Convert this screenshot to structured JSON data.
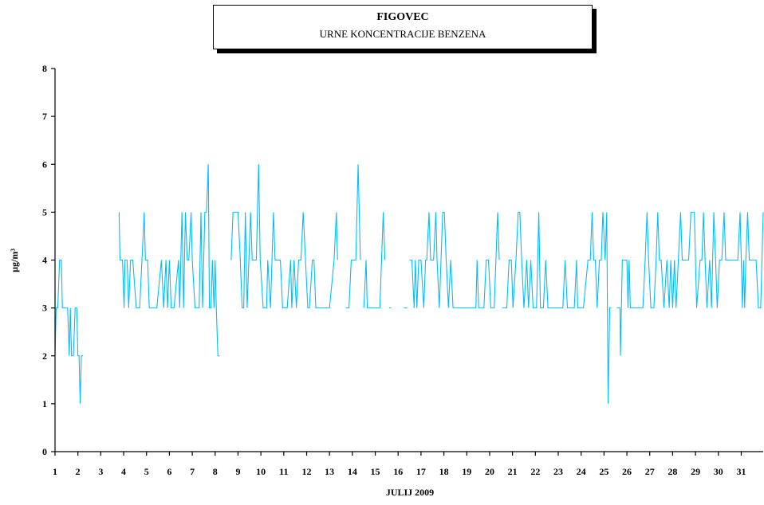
{
  "chart_data": {
    "type": "line",
    "title": "FIGOVEC",
    "subtitle": "URNE KONCENTRACIJE BENZENA",
    "xlabel": "JULIJ 2009",
    "ylabel": "µg/m³",
    "ylim": [
      0,
      8
    ],
    "xlim": [
      1,
      31.96
    ],
    "yticks": [
      "0",
      "1",
      "2",
      "3",
      "4",
      "5",
      "6",
      "7",
      "8"
    ],
    "xticks": [
      "1",
      "2",
      "3",
      "4",
      "5",
      "6",
      "7",
      "8",
      "9",
      "10",
      "11",
      "12",
      "13",
      "14",
      "15",
      "16",
      "17",
      "18",
      "19",
      "20",
      "21",
      "22",
      "23",
      "24",
      "25",
      "26",
      "27",
      "28",
      "29",
      "30",
      "31"
    ],
    "grid": false,
    "line_color": "#00BFFF",
    "series": [
      {
        "values": [
          [
            1.0,
            2
          ],
          [
            1.05,
            3
          ],
          [
            1.12,
            3
          ],
          [
            1.2,
            4
          ],
          [
            1.28,
            4
          ],
          [
            1.32,
            3
          ],
          [
            1.45,
            3
          ],
          [
            1.55,
            3
          ],
          [
            1.62,
            2
          ],
          [
            1.67,
            3
          ],
          [
            1.72,
            2
          ],
          [
            1.8,
            2
          ],
          [
            1.88,
            3
          ],
          [
            1.95,
            3
          ],
          [
            2.0,
            2
          ],
          [
            2.05,
            2
          ],
          [
            2.1,
            1
          ],
          [
            2.15,
            2
          ],
          [
            2.22,
            2
          ],
          null,
          [
            3.8,
            5
          ],
          [
            3.84,
            4
          ],
          [
            3.95,
            4
          ],
          [
            4.02,
            3
          ],
          [
            4.06,
            4
          ],
          [
            4.15,
            4
          ],
          [
            4.22,
            3
          ],
          [
            4.3,
            4
          ],
          [
            4.4,
            4
          ],
          [
            4.55,
            3
          ],
          [
            4.7,
            3
          ],
          [
            4.8,
            4
          ],
          [
            4.9,
            5
          ],
          [
            4.95,
            4
          ],
          [
            5.05,
            4
          ],
          [
            5.12,
            3
          ],
          [
            5.3,
            3
          ],
          [
            5.45,
            3
          ],
          [
            5.65,
            4
          ],
          [
            5.75,
            3
          ],
          [
            5.85,
            4
          ],
          [
            5.92,
            3
          ],
          [
            6.0,
            4
          ],
          [
            6.08,
            3
          ],
          [
            6.2,
            3
          ],
          [
            6.4,
            4
          ],
          [
            6.45,
            3
          ],
          [
            6.55,
            5
          ],
          [
            6.62,
            3
          ],
          [
            6.7,
            5
          ],
          [
            6.78,
            4
          ],
          [
            6.85,
            4
          ],
          [
            6.95,
            5
          ],
          [
            7.0,
            4
          ],
          [
            7.12,
            3
          ],
          [
            7.3,
            3
          ],
          [
            7.38,
            5
          ],
          [
            7.45,
            3
          ],
          [
            7.55,
            5
          ],
          [
            7.62,
            5
          ],
          [
            7.7,
            6
          ],
          [
            7.75,
            3
          ],
          [
            7.82,
            3
          ],
          [
            7.88,
            4
          ],
          [
            7.95,
            3
          ],
          [
            8.0,
            4
          ],
          [
            8.05,
            3
          ],
          [
            8.12,
            2
          ],
          [
            8.2,
            2
          ],
          null,
          [
            8.7,
            4
          ],
          [
            8.78,
            5
          ],
          [
            8.88,
            5
          ],
          [
            9.0,
            5
          ],
          [
            9.1,
            4
          ],
          [
            9.18,
            3
          ],
          [
            9.25,
            3
          ],
          [
            9.32,
            5
          ],
          [
            9.4,
            3
          ],
          [
            9.55,
            5
          ],
          [
            9.62,
            4
          ],
          [
            9.7,
            4
          ],
          [
            9.8,
            4
          ],
          [
            9.85,
            5
          ],
          [
            9.9,
            6
          ],
          [
            9.97,
            4
          ],
          [
            10.1,
            3
          ],
          [
            10.25,
            3
          ],
          [
            10.3,
            4
          ],
          [
            10.42,
            3
          ],
          [
            10.55,
            5
          ],
          [
            10.62,
            4
          ],
          [
            10.72,
            4
          ],
          [
            10.85,
            4
          ],
          [
            10.95,
            3
          ],
          [
            11.15,
            3
          ],
          [
            11.3,
            4
          ],
          [
            11.35,
            3
          ],
          [
            11.45,
            4
          ],
          [
            11.55,
            3
          ],
          [
            11.65,
            4
          ],
          [
            11.75,
            4
          ],
          [
            11.85,
            5
          ],
          [
            11.95,
            4
          ],
          [
            12.05,
            3
          ],
          [
            12.12,
            3
          ],
          [
            12.25,
            4
          ],
          [
            12.32,
            4
          ],
          [
            12.4,
            3
          ],
          [
            12.55,
            3
          ],
          [
            12.7,
            3
          ],
          [
            13.0,
            3
          ],
          [
            13.2,
            4
          ],
          [
            13.3,
            5
          ],
          [
            13.35,
            4
          ],
          null,
          [
            13.7,
            3
          ],
          [
            13.85,
            3
          ],
          [
            13.95,
            4
          ],
          [
            14.05,
            4
          ],
          [
            14.15,
            4
          ],
          [
            14.25,
            6
          ],
          [
            14.35,
            4
          ],
          null,
          [
            14.5,
            3
          ],
          [
            14.6,
            4
          ],
          [
            14.65,
            3
          ],
          [
            14.8,
            3
          ],
          [
            15.0,
            3
          ],
          [
            15.2,
            3
          ],
          [
            15.35,
            5
          ],
          [
            15.42,
            4
          ],
          null,
          [
            15.6,
            3
          ],
          [
            15.7,
            3
          ],
          null,
          [
            16.25,
            3
          ],
          [
            16.4,
            3
          ],
          null,
          [
            16.5,
            4
          ],
          [
            16.6,
            4
          ],
          [
            16.7,
            3
          ],
          [
            16.75,
            4
          ],
          [
            16.82,
            3
          ],
          [
            16.9,
            4
          ],
          [
            17.0,
            4
          ],
          [
            17.12,
            3
          ],
          [
            17.2,
            4
          ],
          [
            17.25,
            4
          ],
          [
            17.35,
            5
          ],
          [
            17.42,
            4
          ],
          [
            17.55,
            4
          ],
          [
            17.65,
            5
          ],
          [
            17.7,
            4
          ],
          [
            17.8,
            3
          ],
          [
            17.95,
            5
          ],
          [
            18.02,
            5
          ],
          [
            18.1,
            4
          ],
          [
            18.2,
            3
          ],
          [
            18.3,
            4
          ],
          [
            18.4,
            3
          ],
          [
            18.6,
            3
          ],
          [
            18.8,
            3
          ],
          [
            19.0,
            3
          ],
          [
            19.2,
            3
          ],
          [
            19.4,
            3
          ],
          [
            19.45,
            4
          ],
          [
            19.52,
            3
          ],
          [
            19.65,
            3
          ],
          [
            19.75,
            3
          ],
          [
            19.85,
            4
          ],
          [
            19.95,
            4
          ],
          [
            20.05,
            3
          ],
          [
            20.2,
            3
          ],
          [
            20.35,
            5
          ],
          [
            20.42,
            4
          ],
          null,
          [
            20.55,
            3
          ],
          [
            20.75,
            3
          ],
          [
            20.85,
            4
          ],
          [
            20.95,
            4
          ],
          [
            21.02,
            3
          ],
          [
            21.15,
            4
          ],
          [
            21.25,
            5
          ],
          [
            21.32,
            5
          ],
          [
            21.4,
            4
          ],
          [
            21.5,
            3
          ],
          [
            21.62,
            4
          ],
          [
            21.7,
            3
          ],
          [
            21.8,
            4
          ],
          [
            21.9,
            3
          ],
          [
            22.05,
            3
          ],
          [
            22.15,
            5
          ],
          [
            22.22,
            3
          ],
          [
            22.35,
            3
          ],
          [
            22.45,
            4
          ],
          [
            22.55,
            3
          ],
          [
            22.65,
            3
          ],
          [
            22.75,
            3
          ],
          [
            22.9,
            3
          ],
          [
            23.05,
            3
          ],
          [
            23.2,
            3
          ],
          [
            23.3,
            4
          ],
          [
            23.4,
            3
          ],
          [
            23.6,
            3
          ],
          [
            23.7,
            3
          ],
          [
            23.8,
            4
          ],
          [
            23.85,
            3
          ],
          [
            24.0,
            3
          ],
          [
            24.1,
            3
          ],
          [
            24.3,
            4
          ],
          [
            24.4,
            4
          ],
          [
            24.48,
            5
          ],
          [
            24.55,
            4
          ],
          [
            24.62,
            4
          ],
          [
            24.7,
            3
          ],
          [
            24.8,
            4
          ],
          [
            24.88,
            4
          ],
          [
            24.95,
            5
          ],
          [
            25.05,
            4
          ],
          [
            25.12,
            5
          ],
          [
            25.18,
            1
          ],
          [
            25.25,
            3
          ],
          [
            25.32,
            3
          ],
          null,
          [
            25.55,
            3
          ],
          [
            25.7,
            3
          ],
          [
            25.72,
            2
          ],
          [
            25.8,
            4
          ],
          [
            25.9,
            4
          ],
          [
            26.0,
            4
          ],
          [
            26.05,
            3
          ],
          [
            26.1,
            4
          ],
          [
            26.15,
            3
          ],
          [
            26.25,
            3
          ],
          [
            26.4,
            3
          ],
          [
            26.55,
            3
          ],
          [
            26.7,
            3
          ],
          [
            26.8,
            4
          ],
          [
            26.88,
            5
          ],
          [
            26.95,
            4
          ],
          [
            27.05,
            3
          ],
          [
            27.18,
            3
          ],
          [
            27.28,
            4
          ],
          [
            27.35,
            5
          ],
          [
            27.42,
            4
          ],
          [
            27.5,
            4
          ],
          [
            27.62,
            3
          ],
          [
            27.75,
            4
          ],
          [
            27.85,
            3
          ],
          [
            27.92,
            4
          ],
          [
            28.0,
            3
          ],
          [
            28.08,
            4
          ],
          [
            28.15,
            3
          ],
          [
            28.25,
            4
          ],
          [
            28.35,
            5
          ],
          [
            28.42,
            4
          ],
          [
            28.55,
            4
          ],
          [
            28.7,
            4
          ],
          [
            28.8,
            5
          ],
          [
            28.88,
            5
          ],
          [
            28.95,
            5
          ],
          [
            29.05,
            3
          ],
          [
            29.2,
            4
          ],
          [
            29.28,
            4
          ],
          [
            29.35,
            5
          ],
          [
            29.42,
            4
          ],
          [
            29.5,
            3
          ],
          [
            29.62,
            4
          ],
          [
            29.7,
            3
          ],
          [
            29.8,
            5
          ],
          [
            29.88,
            4
          ],
          [
            29.95,
            3
          ],
          [
            30.05,
            4
          ],
          [
            30.15,
            4
          ],
          [
            30.25,
            5
          ],
          [
            30.32,
            4
          ],
          [
            30.42,
            4
          ],
          [
            30.55,
            4
          ],
          [
            30.7,
            4
          ],
          [
            30.85,
            4
          ],
          [
            30.95,
            5
          ],
          [
            31.05,
            3
          ],
          [
            31.1,
            4
          ],
          [
            31.15,
            3
          ],
          [
            31.2,
            4
          ],
          [
            31.28,
            5
          ],
          [
            31.35,
            4
          ],
          [
            31.55,
            4
          ],
          [
            31.65,
            4
          ],
          [
            31.75,
            3
          ],
          [
            31.85,
            3
          ],
          [
            31.96,
            5
          ]
        ]
      }
    ]
  }
}
